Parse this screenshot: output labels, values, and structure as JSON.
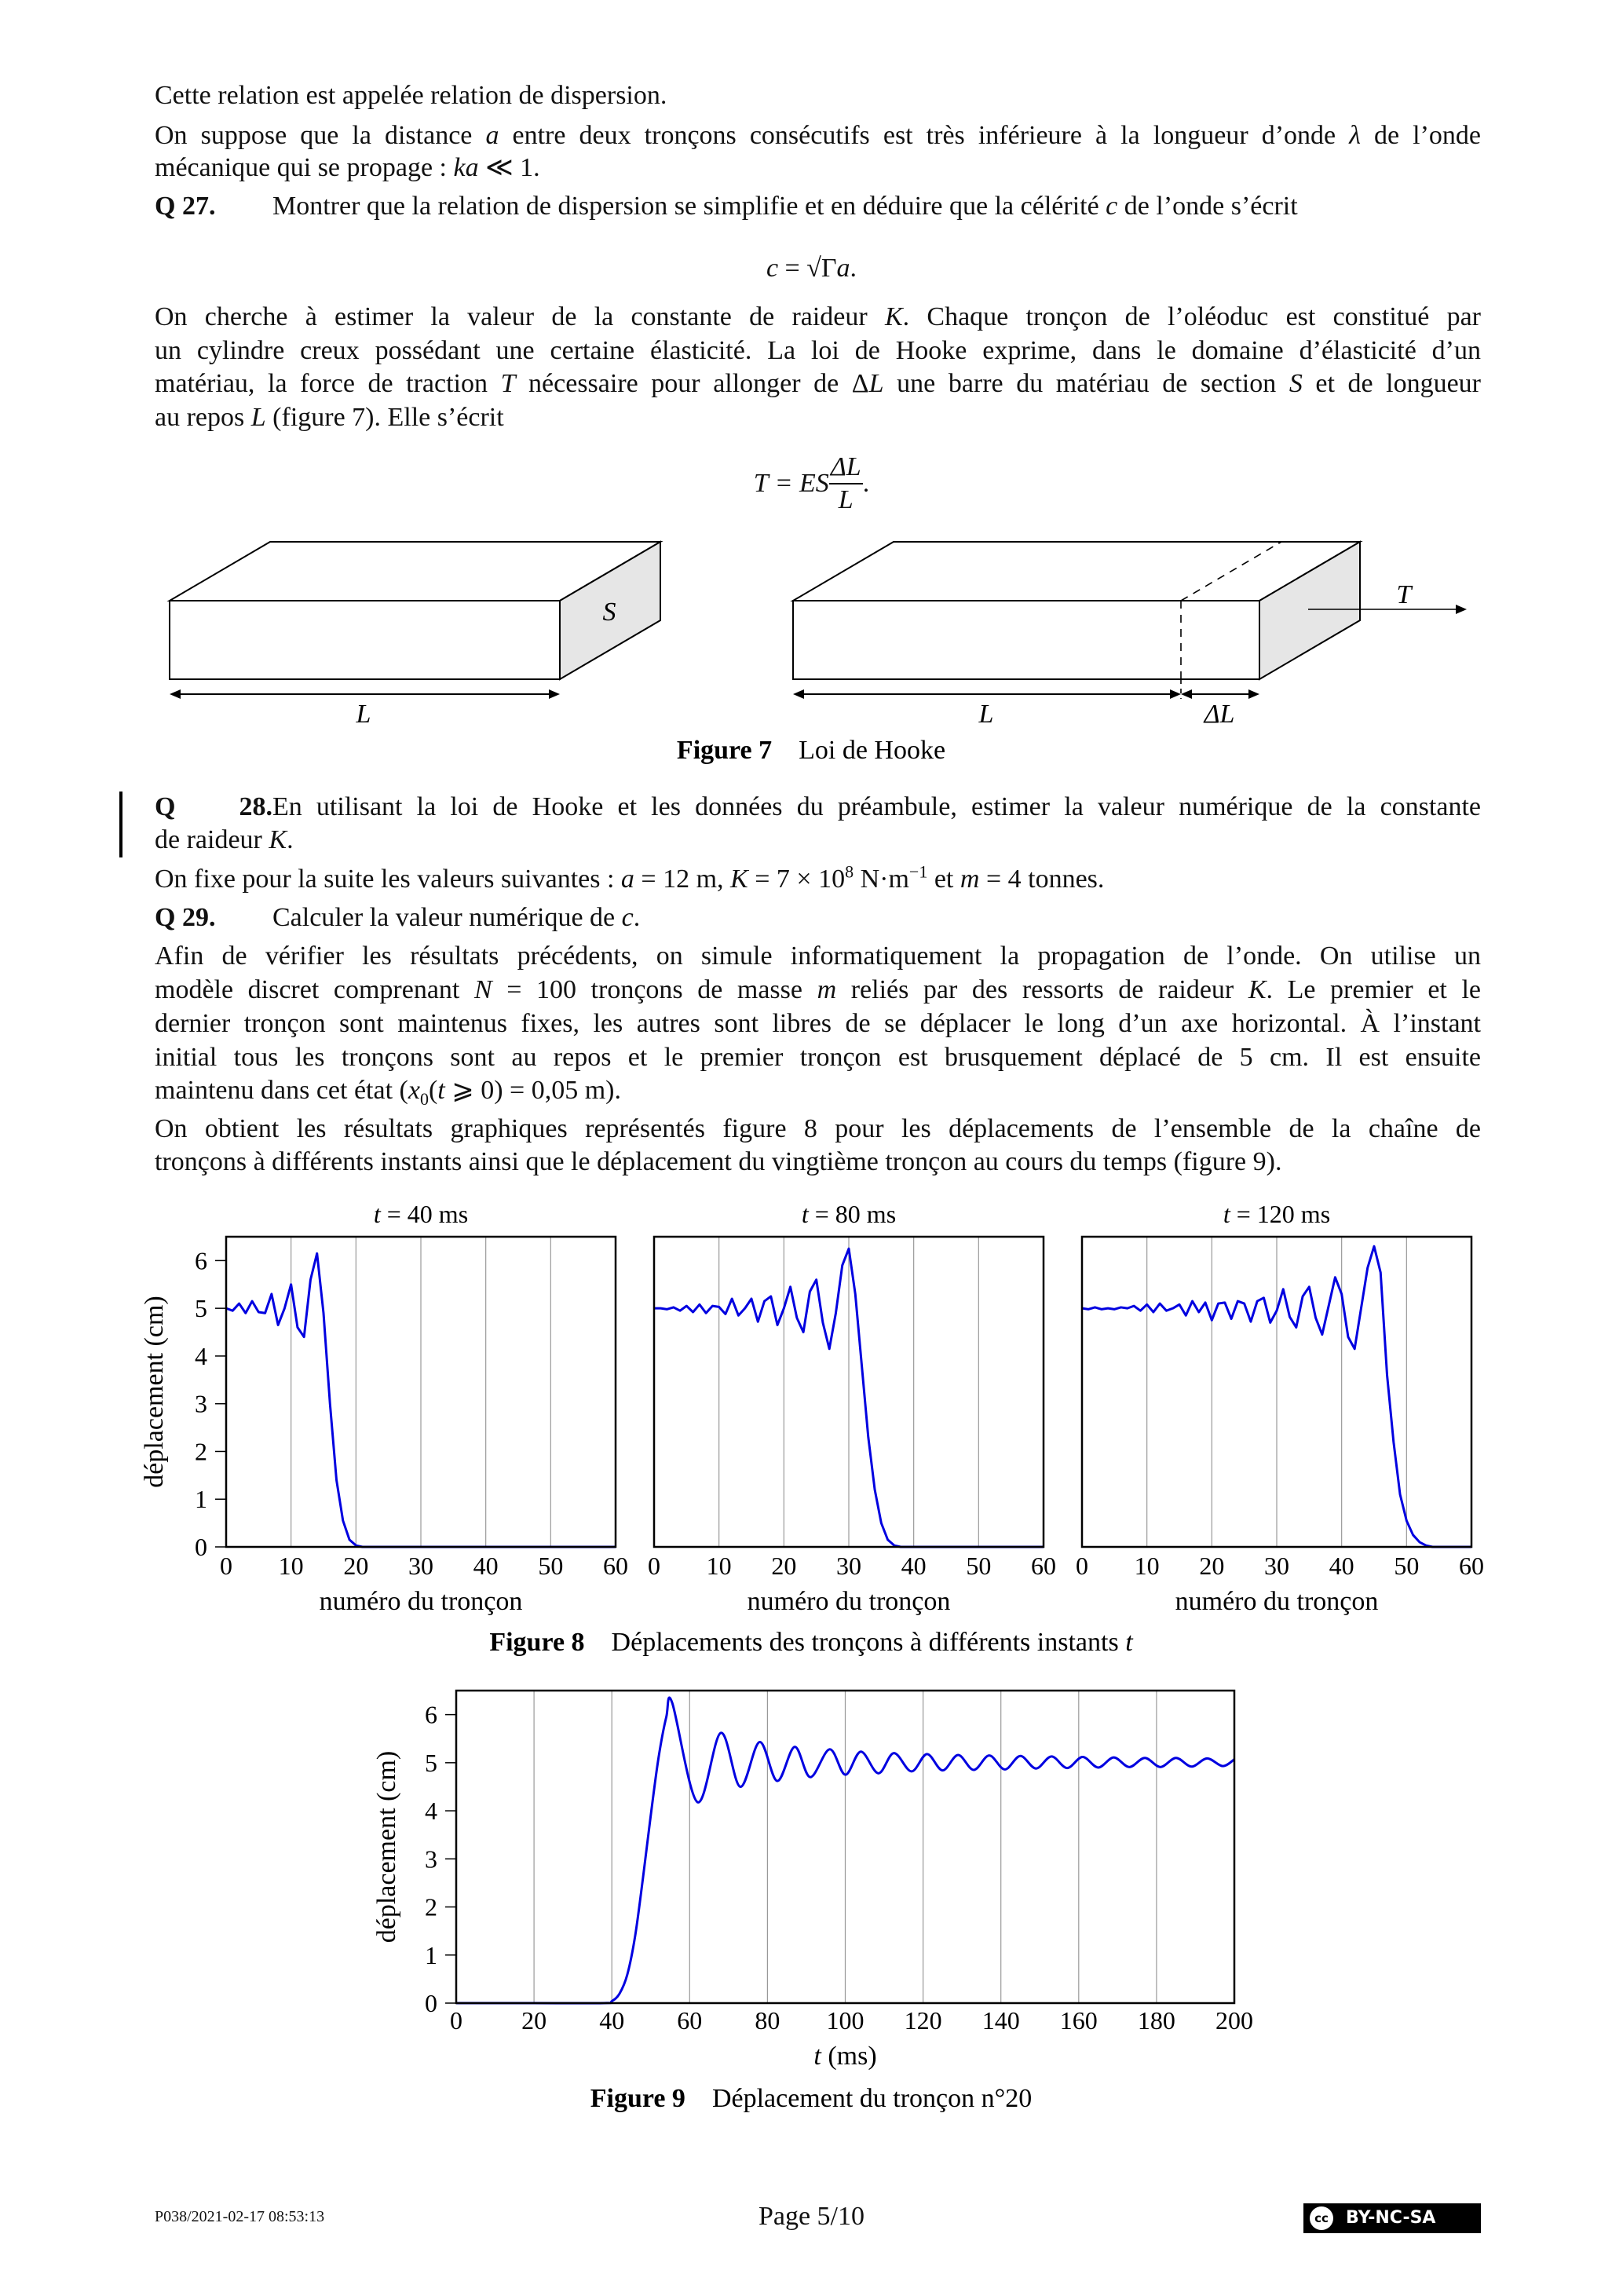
{
  "text": {
    "p1": [
      [
        {
          "t": "Cette relation est appelée relation de dispersion."
        }
      ]
    ],
    "p2": [
      [
        {
          "t": "On suppose que la distance "
        },
        {
          "t": "a",
          "i": true
        },
        {
          "t": " entre deux tronçons consécutifs est très inférieure à la longueur d’onde "
        },
        {
          "t": "λ",
          "i": true
        },
        {
          "t": " de l’onde"
        }
      ],
      [
        {
          "t": "mécanique qui se propage : "
        },
        {
          "t": "ka",
          "i": true
        },
        {
          "t": " ≪ 1."
        }
      ]
    ],
    "q27": {
      "label": "Q 27.",
      "lines": [
        [
          {
            "t": "Montrer que la relation de dispersion se simplifie et en déduire que la célérité "
          },
          {
            "t": "c",
            "i": true
          },
          {
            "t": " de l’onde s’écrit"
          }
        ]
      ]
    },
    "eq1": [
      {
        "t": "c",
        "i": true
      },
      {
        "t": " = √Γ"
      },
      {
        "t": "a",
        "i": true
      },
      {
        "t": "."
      }
    ],
    "p3": [
      [
        {
          "t": "On cherche à estimer la valeur de la constante de raideur "
        },
        {
          "t": "K",
          "i": true
        },
        {
          "t": ". Chaque tronçon de l’oléoduc est constitué par"
        }
      ],
      [
        {
          "t": "un cylindre creux possédant une certaine élasticité. La loi de Hooke exprime, dans le domaine d’élasticité d’un"
        }
      ],
      [
        {
          "t": "matériau, la force de traction "
        },
        {
          "t": "T",
          "i": true
        },
        {
          "t": " nécessaire pour allonger de Δ"
        },
        {
          "t": "L",
          "i": true
        },
        {
          "t": " une barre du matériau de section "
        },
        {
          "t": "S",
          "i": true
        },
        {
          "t": " et de longueur"
        }
      ],
      [
        {
          "t": "au repos "
        },
        {
          "t": "L",
          "i": true
        },
        {
          "t": " (figure 7). Elle s’écrit"
        }
      ]
    ],
    "eq2": {
      "lhs": "T = ES",
      "num": "ΔL",
      "den": "L",
      "end": "."
    },
    "q28": {
      "label": "Q 28.",
      "lines": [
        [
          {
            "t": "En utilisant la loi de Hooke et les données du préambule, estimer la valeur numérique de la constante"
          }
        ],
        [
          {
            "t": "de raideur "
          },
          {
            "t": "K",
            "i": true
          },
          {
            "t": "."
          }
        ]
      ]
    },
    "p4": [
      [
        {
          "t": "On fixe pour la suite les valeurs suivantes : "
        },
        {
          "t": "a",
          "i": true
        },
        {
          "t": " = 12 m, "
        },
        {
          "t": "K",
          "i": true
        },
        {
          "t": " = 7 × 10"
        },
        {
          "t": "8",
          "sup": true
        },
        {
          "t": " N·m"
        },
        {
          "t": "−1",
          "sup": true
        },
        {
          "t": " et "
        },
        {
          "t": "m",
          "i": true
        },
        {
          "t": " = 4 tonnes."
        }
      ]
    ],
    "q29": {
      "label": "Q 29.",
      "lines": [
        [
          {
            "t": "Calculer la valeur numérique de "
          },
          {
            "t": "c",
            "i": true
          },
          {
            "t": "."
          }
        ]
      ]
    },
    "p5": [
      [
        {
          "t": "Afin de vérifier les résultats précédents, on simule informatiquement la propagation de l’onde. On utilise un"
        }
      ],
      [
        {
          "t": "modèle discret comprenant "
        },
        {
          "t": "N",
          "i": true
        },
        {
          "t": " = 100 tronçons de masse "
        },
        {
          "t": "m",
          "i": true
        },
        {
          "t": " reliés par des ressorts de raideur "
        },
        {
          "t": "K",
          "i": true
        },
        {
          "t": ". Le premier et le"
        }
      ],
      [
        {
          "t": "dernier tronçon sont maintenus fixes, les autres sont libres de se déplacer le long d’un axe horizontal. À l’instant"
        }
      ],
      [
        {
          "t": "initial tous les tronçons sont au repos et le premier tronçon est brusquement déplacé de 5 cm. Il est ensuite"
        }
      ],
      [
        {
          "t": "maintenu dans cet état ("
        },
        {
          "t": "x",
          "i": true
        },
        {
          "t": "0",
          "sub": true
        },
        {
          "t": "("
        },
        {
          "t": "t",
          "i": true
        },
        {
          "t": " ⩾ 0) = 0,05 m)."
        }
      ]
    ],
    "p6": [
      [
        {
          "t": "On obtient les résultats graphiques représentés figure 8 pour les déplacements de l’ensemble de la chaîne de"
        }
      ],
      [
        {
          "t": "tronçons à différents instants ainsi que le déplacement du vingtième tronçon au cours du temps (figure 9)."
        }
      ]
    ]
  },
  "figure7": {
    "caption_label": "Figure 7",
    "caption_text": "Loi de Hooke",
    "label_S": "S",
    "label_T": "T",
    "label_L1": "L",
    "label_L2": "L",
    "label_dL": "ΔL",
    "face_color": "#e6e6e6"
  },
  "chart_data": [
    {
      "type": "line",
      "title": "t = 40 ms",
      "xlabel": "numéro du tronçon",
      "ylabel": "déplacement (cm)",
      "xlim": [
        0,
        60
      ],
      "ylim": [
        0,
        6.5
      ],
      "xticks": [
        0,
        10,
        20,
        30,
        40,
        50,
        60
      ],
      "yticks": [
        0,
        1,
        2,
        3,
        4,
        5,
        6
      ],
      "grid": "vertical",
      "color": "#0000e0",
      "x": [
        0,
        1,
        2,
        3,
        4,
        5,
        6,
        7,
        8,
        9,
        10,
        11,
        12,
        13,
        14,
        15,
        16,
        17,
        18,
        19,
        20,
        21,
        60
      ],
      "y": [
        5,
        4.95,
        5.1,
        4.9,
        5.15,
        4.92,
        4.9,
        5.3,
        4.65,
        5.0,
        5.5,
        4.6,
        4.4,
        5.6,
        6.15,
        4.9,
        3.0,
        1.4,
        0.55,
        0.15,
        0.03,
        0,
        0
      ]
    },
    {
      "type": "line",
      "title": "t = 80 ms",
      "xlabel": "numéro du tronçon",
      "xlim": [
        0,
        60
      ],
      "ylim": [
        0,
        6.5
      ],
      "xticks": [
        0,
        10,
        20,
        30,
        40,
        50,
        60
      ],
      "grid": "vertical",
      "color": "#0000e0",
      "x": [
        0,
        1,
        2,
        3,
        4,
        5,
        6,
        7,
        8,
        9,
        10,
        11,
        12,
        13,
        14,
        15,
        16,
        17,
        18,
        19,
        20,
        21,
        22,
        23,
        24,
        25,
        26,
        27,
        28,
        29,
        30,
        31,
        32,
        33,
        34,
        35,
        36,
        37,
        38,
        60
      ],
      "y": [
        5.0,
        5.0,
        4.98,
        5.02,
        4.95,
        5.05,
        4.92,
        5.08,
        4.9,
        5.05,
        5.03,
        4.88,
        5.2,
        4.85,
        5.0,
        5.2,
        4.72,
        5.15,
        5.25,
        4.65,
        5.0,
        5.45,
        4.8,
        4.5,
        5.35,
        5.6,
        4.7,
        4.15,
        4.9,
        5.9,
        6.25,
        5.3,
        3.8,
        2.3,
        1.2,
        0.5,
        0.15,
        0.03,
        0,
        0
      ]
    },
    {
      "type": "line",
      "title": "t = 120 ms",
      "xlabel": "numéro du tronçon",
      "xlim": [
        0,
        60
      ],
      "ylim": [
        0,
        6.5
      ],
      "xticks": [
        0,
        10,
        20,
        30,
        40,
        50,
        60
      ],
      "grid": "vertical",
      "color": "#0000e0",
      "x": [
        0,
        1,
        2,
        3,
        4,
        5,
        6,
        7,
        8,
        9,
        10,
        11,
        12,
        13,
        14,
        15,
        16,
        17,
        18,
        19,
        20,
        21,
        22,
        23,
        24,
        25,
        26,
        27,
        28,
        29,
        30,
        31,
        32,
        33,
        34,
        35,
        36,
        37,
        38,
        39,
        40,
        41,
        42,
        43,
        44,
        45,
        46,
        47,
        48,
        49,
        50,
        51,
        52,
        53,
        54,
        60
      ],
      "y": [
        5,
        4.98,
        5.02,
        4.98,
        5.0,
        4.98,
        5.02,
        5.0,
        5.05,
        4.95,
        5.08,
        4.92,
        5.1,
        4.95,
        5.0,
        5.08,
        4.85,
        5.15,
        4.92,
        5.12,
        4.75,
        5.1,
        5.12,
        4.78,
        5.15,
        5.1,
        4.72,
        5.15,
        5.22,
        4.7,
        4.95,
        5.4,
        4.82,
        4.6,
        5.25,
        5.45,
        4.8,
        4.45,
        5.05,
        5.65,
        5.3,
        4.4,
        4.15,
        5.0,
        5.85,
        6.3,
        5.75,
        3.6,
        2.2,
        1.1,
        0.55,
        0.25,
        0.1,
        0.03,
        0,
        0
      ]
    },
    {
      "type": "line",
      "xlabel": "t (ms)",
      "ylabel": "déplacement (cm)",
      "xlim": [
        0,
        200
      ],
      "ylim": [
        0,
        6.5
      ],
      "xticks": [
        0,
        20,
        40,
        60,
        80,
        100,
        120,
        140,
        160,
        180,
        200
      ],
      "yticks": [
        0,
        1,
        2,
        3,
        4,
        5,
        6
      ],
      "grid": "vertical",
      "color": "#0000e0",
      "x": [
        0,
        20,
        38,
        40,
        42,
        44,
        46,
        48,
        50,
        52,
        54,
        55.5,
        62,
        68,
        73,
        78,
        82.5,
        87,
        91,
        96,
        100,
        104,
        108.5,
        112.5,
        117,
        121,
        125,
        129,
        133,
        137,
        141,
        145,
        149,
        153,
        157,
        161,
        165,
        169,
        173,
        177,
        181,
        185,
        189,
        193,
        197,
        200
      ],
      "y": [
        0,
        0,
        0,
        0.04,
        0.2,
        0.6,
        1.4,
        2.6,
        3.9,
        5.1,
        5.95,
        6.25,
        4.18,
        5.62,
        4.5,
        5.43,
        4.62,
        5.33,
        4.7,
        5.28,
        4.75,
        5.23,
        4.78,
        5.2,
        4.82,
        5.18,
        4.84,
        5.16,
        4.85,
        5.15,
        4.86,
        5.14,
        4.88,
        5.13,
        4.89,
        5.12,
        4.9,
        5.11,
        4.91,
        5.1,
        4.91,
        5.1,
        4.92,
        5.09,
        4.93,
        5.07
      ]
    }
  ],
  "figure8": {
    "caption_label": "Figure 8",
    "caption_text": "Déplacements des tronçons à différents instants ",
    "caption_var": "t"
  },
  "figure9": {
    "caption_label": "Figure 9",
    "caption_text": "Déplacement du tronçon n°20"
  },
  "footer": {
    "left": "P038/2021-02-17 08:53:13",
    "center": "Page 5/10",
    "badge_cc": "cc",
    "badge_label": "BY-NC-SA"
  }
}
